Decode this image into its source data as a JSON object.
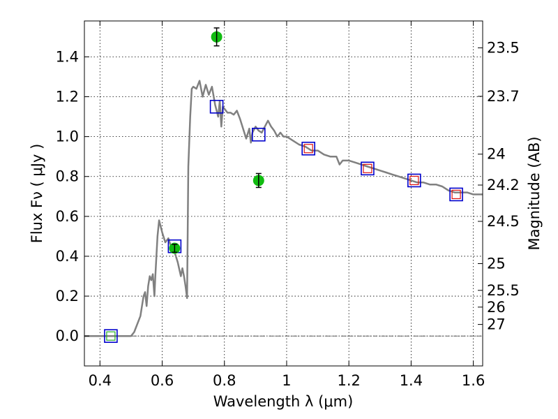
{
  "chart_data": {
    "type": "scatter",
    "xlabel": "Wavelength  λ (μm)",
    "ylabel": "Flux  Fν  ( μJy )",
    "y2label": "Magnitude (AB)",
    "xlim": [
      0.35,
      1.63
    ],
    "ylim": [
      -0.15,
      1.58
    ],
    "grid": true,
    "x_ticks": [
      {
        "value": 0.4,
        "label": "0.4"
      },
      {
        "value": 0.6,
        "label": "0.6"
      },
      {
        "value": 0.8,
        "label": "0.8"
      },
      {
        "value": 1.0,
        "label": "1"
      },
      {
        "value": 1.2,
        "label": "1.2"
      },
      {
        "value": 1.4,
        "label": "1.4"
      },
      {
        "value": 1.6,
        "label": "1.6"
      }
    ],
    "y_ticks": [
      {
        "value": 0.0,
        "label": "0.0"
      },
      {
        "value": 0.2,
        "label": "0.2"
      },
      {
        "value": 0.4,
        "label": "0.4"
      },
      {
        "value": 0.6,
        "label": "0.6"
      },
      {
        "value": 0.8,
        "label": "0.8"
      },
      {
        "value": 1.0,
        "label": "1.0"
      },
      {
        "value": 1.2,
        "label": "1.2"
      },
      {
        "value": 1.4,
        "label": "1.4"
      }
    ],
    "y2_ticks": [
      {
        "flux": 1.445,
        "label": "23.5"
      },
      {
        "flux": 1.202,
        "label": "23.7"
      },
      {
        "flux": 0.912,
        "label": "24"
      },
      {
        "flux": 0.757,
        "label": "24.2"
      },
      {
        "flux": 0.575,
        "label": "24.5"
      },
      {
        "flux": 0.363,
        "label": "25"
      },
      {
        "flux": 0.229,
        "label": "25.5"
      },
      {
        "flux": 0.145,
        "label": "26"
      },
      {
        "flux": 0.058,
        "label": "27"
      }
    ],
    "model_curve": {
      "color": "#808080",
      "points": [
        [
          0.35,
          0.0
        ],
        [
          0.5,
          0.0
        ],
        [
          0.51,
          0.02
        ],
        [
          0.53,
          0.1
        ],
        [
          0.54,
          0.2
        ],
        [
          0.545,
          0.22
        ],
        [
          0.55,
          0.15
        ],
        [
          0.555,
          0.25
        ],
        [
          0.56,
          0.3
        ],
        [
          0.565,
          0.28
        ],
        [
          0.57,
          0.31
        ],
        [
          0.575,
          0.2
        ],
        [
          0.578,
          0.3
        ],
        [
          0.585,
          0.5
        ],
        [
          0.59,
          0.58
        ],
        [
          0.6,
          0.52
        ],
        [
          0.61,
          0.47
        ],
        [
          0.62,
          0.49
        ],
        [
          0.63,
          0.44
        ],
        [
          0.64,
          0.42
        ],
        [
          0.65,
          0.37
        ],
        [
          0.66,
          0.3
        ],
        [
          0.665,
          0.34
        ],
        [
          0.67,
          0.3
        ],
        [
          0.675,
          0.25
        ],
        [
          0.68,
          0.19
        ],
        [
          0.684,
          0.85
        ],
        [
          0.69,
          1.1
        ],
        [
          0.695,
          1.24
        ],
        [
          0.7,
          1.25
        ],
        [
          0.71,
          1.24
        ],
        [
          0.72,
          1.28
        ],
        [
          0.73,
          1.2
        ],
        [
          0.74,
          1.26
        ],
        [
          0.75,
          1.21
        ],
        [
          0.76,
          1.25
        ],
        [
          0.77,
          1.16
        ],
        [
          0.78,
          1.1
        ],
        [
          0.785,
          1.18
        ],
        [
          0.79,
          1.05
        ],
        [
          0.795,
          1.15
        ],
        [
          0.8,
          1.14
        ],
        [
          0.81,
          1.12
        ],
        [
          0.82,
          1.12
        ],
        [
          0.83,
          1.11
        ],
        [
          0.84,
          1.13
        ],
        [
          0.85,
          1.09
        ],
        [
          0.86,
          1.04
        ],
        [
          0.87,
          0.99
        ],
        [
          0.88,
          1.04
        ],
        [
          0.885,
          0.97
        ],
        [
          0.89,
          1.02
        ],
        [
          0.9,
          1.05
        ],
        [
          0.91,
          1.03
        ],
        [
          0.92,
          1.02
        ],
        [
          0.93,
          1.05
        ],
        [
          0.94,
          1.08
        ],
        [
          0.95,
          1.05
        ],
        [
          0.96,
          1.03
        ],
        [
          0.97,
          1.0
        ],
        [
          0.98,
          1.02
        ],
        [
          0.99,
          1.0
        ],
        [
          1.0,
          1.0
        ],
        [
          1.02,
          0.98
        ],
        [
          1.04,
          0.96
        ],
        [
          1.06,
          0.95
        ],
        [
          1.08,
          0.93
        ],
        [
          1.1,
          0.93
        ],
        [
          1.12,
          0.91
        ],
        [
          1.14,
          0.9
        ],
        [
          1.16,
          0.9
        ],
        [
          1.17,
          0.86
        ],
        [
          1.18,
          0.88
        ],
        [
          1.2,
          0.88
        ],
        [
          1.22,
          0.87
        ],
        [
          1.24,
          0.86
        ],
        [
          1.26,
          0.85
        ],
        [
          1.28,
          0.84
        ],
        [
          1.3,
          0.83
        ],
        [
          1.32,
          0.82
        ],
        [
          1.34,
          0.81
        ],
        [
          1.36,
          0.8
        ],
        [
          1.38,
          0.79
        ],
        [
          1.4,
          0.78
        ],
        [
          1.42,
          0.77
        ],
        [
          1.44,
          0.77
        ],
        [
          1.46,
          0.76
        ],
        [
          1.48,
          0.76
        ],
        [
          1.5,
          0.75
        ],
        [
          1.52,
          0.73
        ],
        [
          1.54,
          0.72
        ],
        [
          1.56,
          0.72
        ],
        [
          1.58,
          0.72
        ],
        [
          1.6,
          0.71
        ],
        [
          1.63,
          0.71
        ]
      ]
    },
    "model_photometry": {
      "color": "#0000cc",
      "x": [
        0.435,
        0.64,
        0.775,
        0.91,
        1.07,
        1.26,
        1.41,
        1.545
      ],
      "y": [
        0.0,
        0.45,
        1.15,
        1.01,
        0.94,
        0.84,
        0.78,
        0.71
      ]
    },
    "inner_boxes_red": {
      "color": "#dd1111",
      "x": [
        1.07,
        1.26,
        1.41,
        1.545
      ],
      "y": [
        0.94,
        0.84,
        0.78,
        0.71
      ]
    },
    "inner_box_green": {
      "color": "#22aa22",
      "x": [
        0.435
      ],
      "y": [
        0.0
      ]
    },
    "observed": {
      "color": "#11bb11",
      "points": [
        {
          "x": 0.64,
          "y": 0.44,
          "err": 0.02
        },
        {
          "x": 0.775,
          "y": 1.5,
          "err": 0.045
        },
        {
          "x": 0.91,
          "y": 0.78,
          "err": 0.035
        }
      ]
    }
  }
}
